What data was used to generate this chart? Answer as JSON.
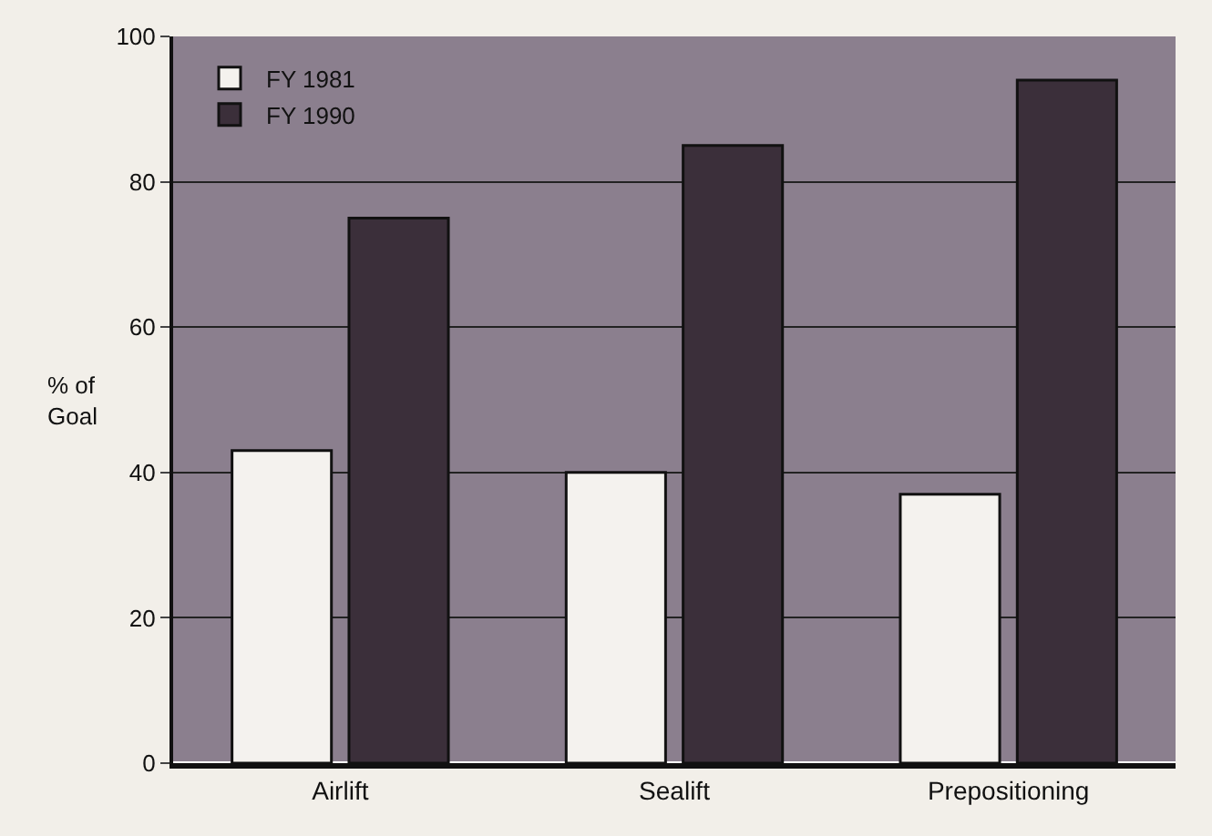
{
  "chart_data": {
    "type": "bar",
    "ylabel": "% of Goal",
    "categories": [
      "Airlift",
      "Sealift",
      "Prepositioning"
    ],
    "series": [
      {
        "name": "FY 1981",
        "color": "#f4f2ee",
        "values": [
          43,
          40,
          37
        ]
      },
      {
        "name": "FY 1990",
        "color": "#3b2f3a",
        "values": [
          75,
          85,
          94
        ]
      }
    ],
    "ylim": [
      0,
      100
    ],
    "yticks": [
      0,
      20,
      40,
      60,
      80,
      100
    ],
    "grid": "y",
    "legend": "top left"
  }
}
